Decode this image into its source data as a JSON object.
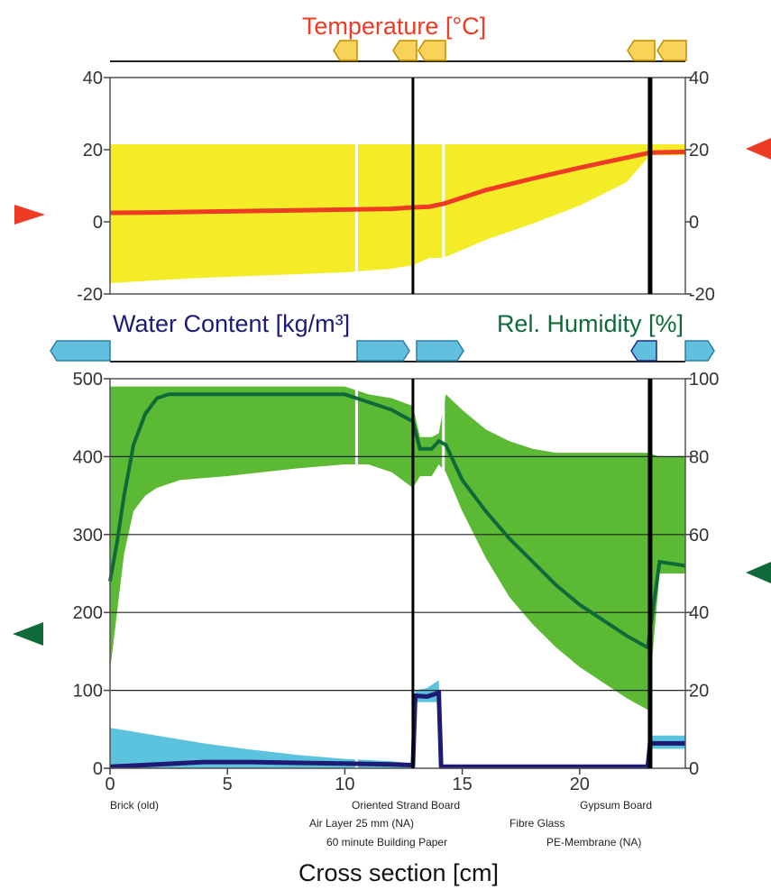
{
  "colors": {
    "temperature": "#ee3b24",
    "temperature_band": "#f5ec28",
    "water_content": "#1f1a73",
    "water_content_band": "#5bc3dd",
    "humidity": "#0f6a3a",
    "humidity_band": "#5cb934",
    "marker_yellow": "#f8d35a",
    "marker_blue": "#62c0de"
  },
  "chart_data": [
    {
      "type": "line",
      "title": "Temperature [°C]",
      "xlim": [
        0,
        24.5
      ],
      "ylim": [
        -20,
        40
      ],
      "yticks": [
        -20,
        0,
        20,
        40
      ],
      "grid": false,
      "series": [
        {
          "name": "Temperature",
          "x": [
            0,
            2,
            4,
            6,
            8,
            10,
            12,
            12.9,
            13.6,
            14.2,
            16,
            18,
            20,
            22,
            23,
            24.5
          ],
          "y": [
            2.5,
            2.6,
            2.8,
            3.0,
            3.2,
            3.4,
            3.6,
            4.0,
            4.2,
            5.0,
            8.8,
            12.0,
            15.0,
            17.8,
            19.2,
            19.4
          ],
          "band_min": [
            -17,
            -16.2,
            -15.5,
            -15,
            -14.5,
            -14,
            -13,
            -12,
            -10,
            -10,
            -5,
            -0.5,
            4.5,
            11,
            18.5,
            18.5
          ],
          "band_max": [
            21.5,
            21.5,
            21.5,
            21.5,
            21.5,
            21.5,
            21.5,
            21.5,
            21.5,
            21.5,
            21.5,
            21.5,
            21.5,
            21.5,
            21.5,
            21.5
          ]
        }
      ]
    },
    {
      "type": "line",
      "title_left": "Water Content [kg/m³]",
      "title_right": "Rel. Humidity [%]",
      "xlabel": "Cross section [cm]",
      "xlim": [
        0,
        24.5
      ],
      "xticks": [
        0,
        5,
        10,
        15,
        20
      ],
      "ylim": [
        0,
        500
      ],
      "yticks": [
        0,
        100,
        200,
        300,
        400,
        500
      ],
      "ylim_right": [
        0,
        100
      ],
      "yticks_right": [
        0,
        20,
        40,
        60,
        80,
        100
      ],
      "grid": true,
      "series": [
        {
          "name": "Rel. Humidity",
          "axis": "right",
          "x": [
            0,
            0.3,
            0.6,
            1,
            1.5,
            2,
            2.5,
            3,
            5,
            8,
            10,
            11,
            12,
            12.9,
            13.2,
            13.7,
            14,
            14.3,
            15,
            16,
            17,
            18,
            19,
            20,
            21,
            22,
            22.9,
            23.4,
            24.5
          ],
          "y": [
            48,
            58,
            70,
            83,
            91,
            95,
            96,
            96,
            96,
            96,
            96,
            94,
            92,
            89,
            82,
            82,
            84,
            83,
            74,
            66,
            59,
            53,
            47,
            42,
            38,
            34,
            31,
            53,
            52
          ],
          "band_min": [
            25,
            40,
            55,
            66,
            70,
            72,
            73,
            74,
            75,
            77,
            78,
            78,
            76,
            72,
            75,
            75,
            78,
            76,
            66,
            54,
            44,
            37,
            31,
            26,
            22,
            18,
            15,
            50,
            50
          ],
          "band_max": [
            98,
            98,
            98,
            98,
            98,
            98,
            98,
            98,
            98,
            98,
            98,
            96,
            95,
            93,
            85,
            85,
            86,
            96,
            92,
            87,
            84,
            82,
            81,
            81,
            81,
            81,
            81,
            80,
            80
          ]
        },
        {
          "name": "Water Content",
          "axis": "left",
          "x": [
            0,
            2,
            4,
            6,
            8,
            10,
            12,
            12.9,
            13.0,
            13.5,
            14.0,
            14.1,
            14.3,
            16,
            18,
            20,
            22,
            22.9,
            23.0,
            24.5
          ],
          "y": [
            2,
            5,
            8,
            8,
            7,
            6,
            5,
            4,
            93,
            92,
            97,
            2,
            2,
            2,
            2,
            2,
            2,
            2,
            32,
            32
          ],
          "band_min": [
            0,
            0,
            0,
            0,
            0,
            0,
            0,
            0,
            85,
            85,
            85,
            0,
            0,
            0,
            0,
            0,
            0,
            0,
            25,
            25
          ],
          "band_max": [
            52,
            42,
            32,
            24,
            17,
            12,
            9,
            6,
            100,
            103,
            113,
            4,
            4,
            4,
            4,
            4,
            4,
            4,
            42,
            42
          ]
        }
      ]
    }
  ],
  "materials": {
    "brick": "Brick (old)",
    "osb": "Oriented Strand Board",
    "air_layer": "Air Layer 25 mm (NA)",
    "building_paper": "60 minute Building Paper",
    "gypsum": "Gypsum Board",
    "fibre_glass": "Fibre Glass",
    "pe_membrane": "PE-Membrane (NA)"
  }
}
